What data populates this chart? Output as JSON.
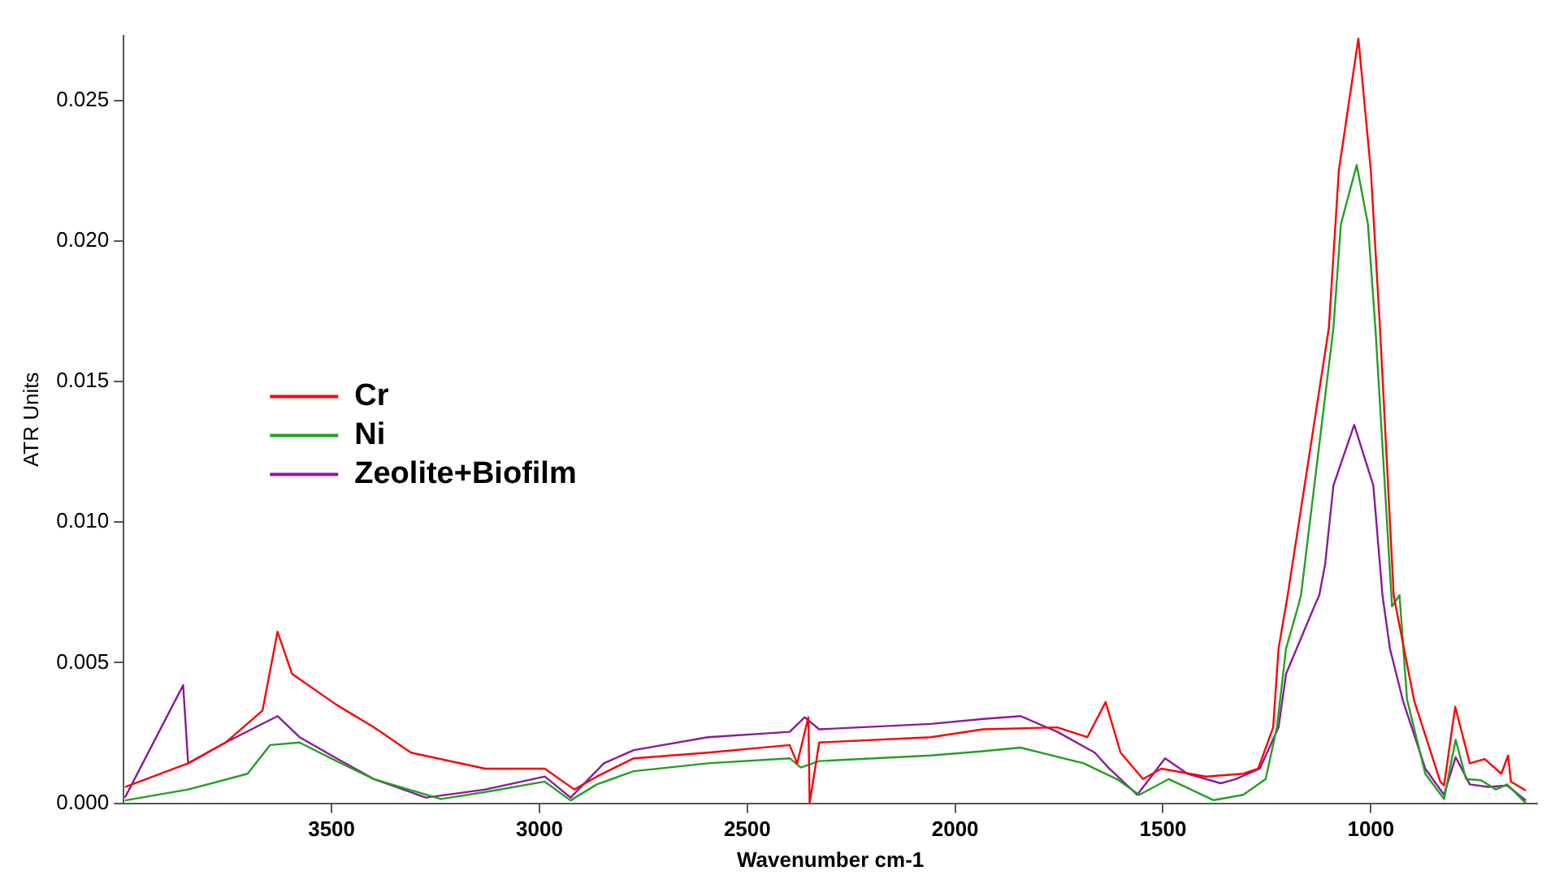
{
  "chart_data": {
    "type": "line",
    "xlabel": "Wavenumber cm-1",
    "ylabel": "ATR Units",
    "xlim": [
      4000,
      600
    ],
    "xticks": [
      3500,
      3000,
      2500,
      2000,
      1500,
      1000
    ],
    "ylim": [
      0,
      0.0273
    ],
    "yticks": [
      {
        "value": 0,
        "label": "0.000"
      },
      {
        "value": 0.005,
        "label": "0.005"
      },
      {
        "value": 0.01,
        "label": "0.010"
      },
      {
        "value": 0.015,
        "label": "0.015"
      },
      {
        "value": 0.02,
        "label": "0.020"
      },
      {
        "value": 0.025,
        "label": "0.025"
      }
    ],
    "grid": false,
    "legend": "left",
    "marker": "none",
    "line_style": "solid",
    "series": [
      {
        "name": "Cr",
        "color": "#ff0000",
        "x": [
          3997,
          3845,
          3755,
          3666,
          3630,
          3595,
          3488,
          3398,
          3309,
          3130,
          2987,
          2916,
          2862,
          2773,
          2595,
          2398,
          2380,
          2353,
          2350,
          2327,
          2059,
          1933,
          1754,
          1682,
          1638,
          1602,
          1548,
          1504,
          1396,
          1307,
          1271,
          1235,
          1222,
          1200,
          1101,
          1077,
          1030,
          1000,
          978,
          945,
          940,
          896,
          833,
          824,
          797,
          762,
          726,
          686,
          670,
          663,
          627
        ],
        "values": [
          0.00058,
          0.00142,
          0.00216,
          0.0033,
          0.0061,
          0.0046,
          0.0035,
          0.0027,
          0.0018,
          0.00123,
          0.00123,
          0.00049,
          0.00095,
          0.0016,
          0.0018,
          0.00207,
          0.00142,
          0.00306,
          0,
          0.00216,
          0.00235,
          0.00263,
          0.0027,
          0.00235,
          0.0036,
          0.0018,
          0.00086,
          0.00123,
          0.00095,
          0.00105,
          0.00123,
          0.0027,
          0.0055,
          0.0074,
          0.0169,
          0.0225,
          0.0272,
          0.0225,
          0.0169,
          0.0074,
          0.007,
          0.00366,
          0.00077,
          0.00063,
          0.00343,
          0.00142,
          0.00157,
          0.00105,
          0.0017,
          0.00077,
          0.00045
        ]
      },
      {
        "name": "Ni",
        "color": "#22a022",
        "x": [
          3997,
          3845,
          3702,
          3648,
          3577,
          3488,
          3398,
          3237,
          3130,
          2987,
          2925,
          2862,
          2773,
          2595,
          2398,
          2371,
          2327,
          2059,
          1933,
          1843,
          1691,
          1611,
          1557,
          1486,
          1378,
          1307,
          1253,
          1226,
          1204,
          1175,
          1168,
          1090,
          1072,
          1034,
          1007,
          989,
          949,
          931,
          913,
          869,
          824,
          796,
          771,
          735,
          699,
          672,
          627
        ],
        "values": [
          0.0001,
          0.00049,
          0.00105,
          0.00207,
          0.00216,
          0.0015,
          0.00086,
          0.00015,
          0.0004,
          0.00077,
          0.0001,
          0.00067,
          0.00114,
          0.00142,
          0.0016,
          0.00127,
          0.0015,
          0.0017,
          0.00185,
          0.00198,
          0.00142,
          0.00086,
          0.0003,
          0.00086,
          0.00011,
          0.0003,
          0.00086,
          0.0027,
          0.0055,
          0.007,
          0.0074,
          0.0169,
          0.0206,
          0.0227,
          0.0206,
          0.0169,
          0.007,
          0.0074,
          0.0037,
          0.00105,
          0.00015,
          0.00226,
          0.00086,
          0.00082,
          0.00049,
          0.00067,
          0
        ]
      },
      {
        "name": "Zeolite+Biofilm",
        "color": "#8b1a9b",
        "x": [
          3997,
          3857,
          3845,
          3755,
          3630,
          3577,
          3488,
          3398,
          3273,
          3130,
          2987,
          2925,
          2845,
          2773,
          2595,
          2398,
          2362,
          2327,
          2059,
          1933,
          1843,
          1754,
          1664,
          1629,
          1562,
          1495,
          1441,
          1361,
          1325,
          1267,
          1222,
          1204,
          1136,
          1124,
          1110,
          1090,
          1040,
          994,
          972,
          954,
          923,
          869,
          824,
          796,
          762,
          717,
          672,
          627
        ],
        "values": [
          0.0002,
          0.0042,
          0.00142,
          0.00216,
          0.0031,
          0.00235,
          0.0016,
          0.00086,
          0.0002,
          0.00049,
          0.00095,
          0.0002,
          0.00142,
          0.00189,
          0.00235,
          0.00254,
          0.00306,
          0.00263,
          0.00282,
          0.003,
          0.0031,
          0.00254,
          0.0018,
          0.00123,
          0.0003,
          0.0016,
          0.00105,
          0.00071,
          0.00086,
          0.00123,
          0.0027,
          0.0046,
          0.007,
          0.0074,
          0.0085,
          0.0113,
          0.01346,
          0.0113,
          0.0074,
          0.0055,
          0.00366,
          0.00123,
          0.0003,
          0.00164,
          0.00067,
          0.00058,
          0.00063,
          0.0001
        ]
      }
    ]
  }
}
